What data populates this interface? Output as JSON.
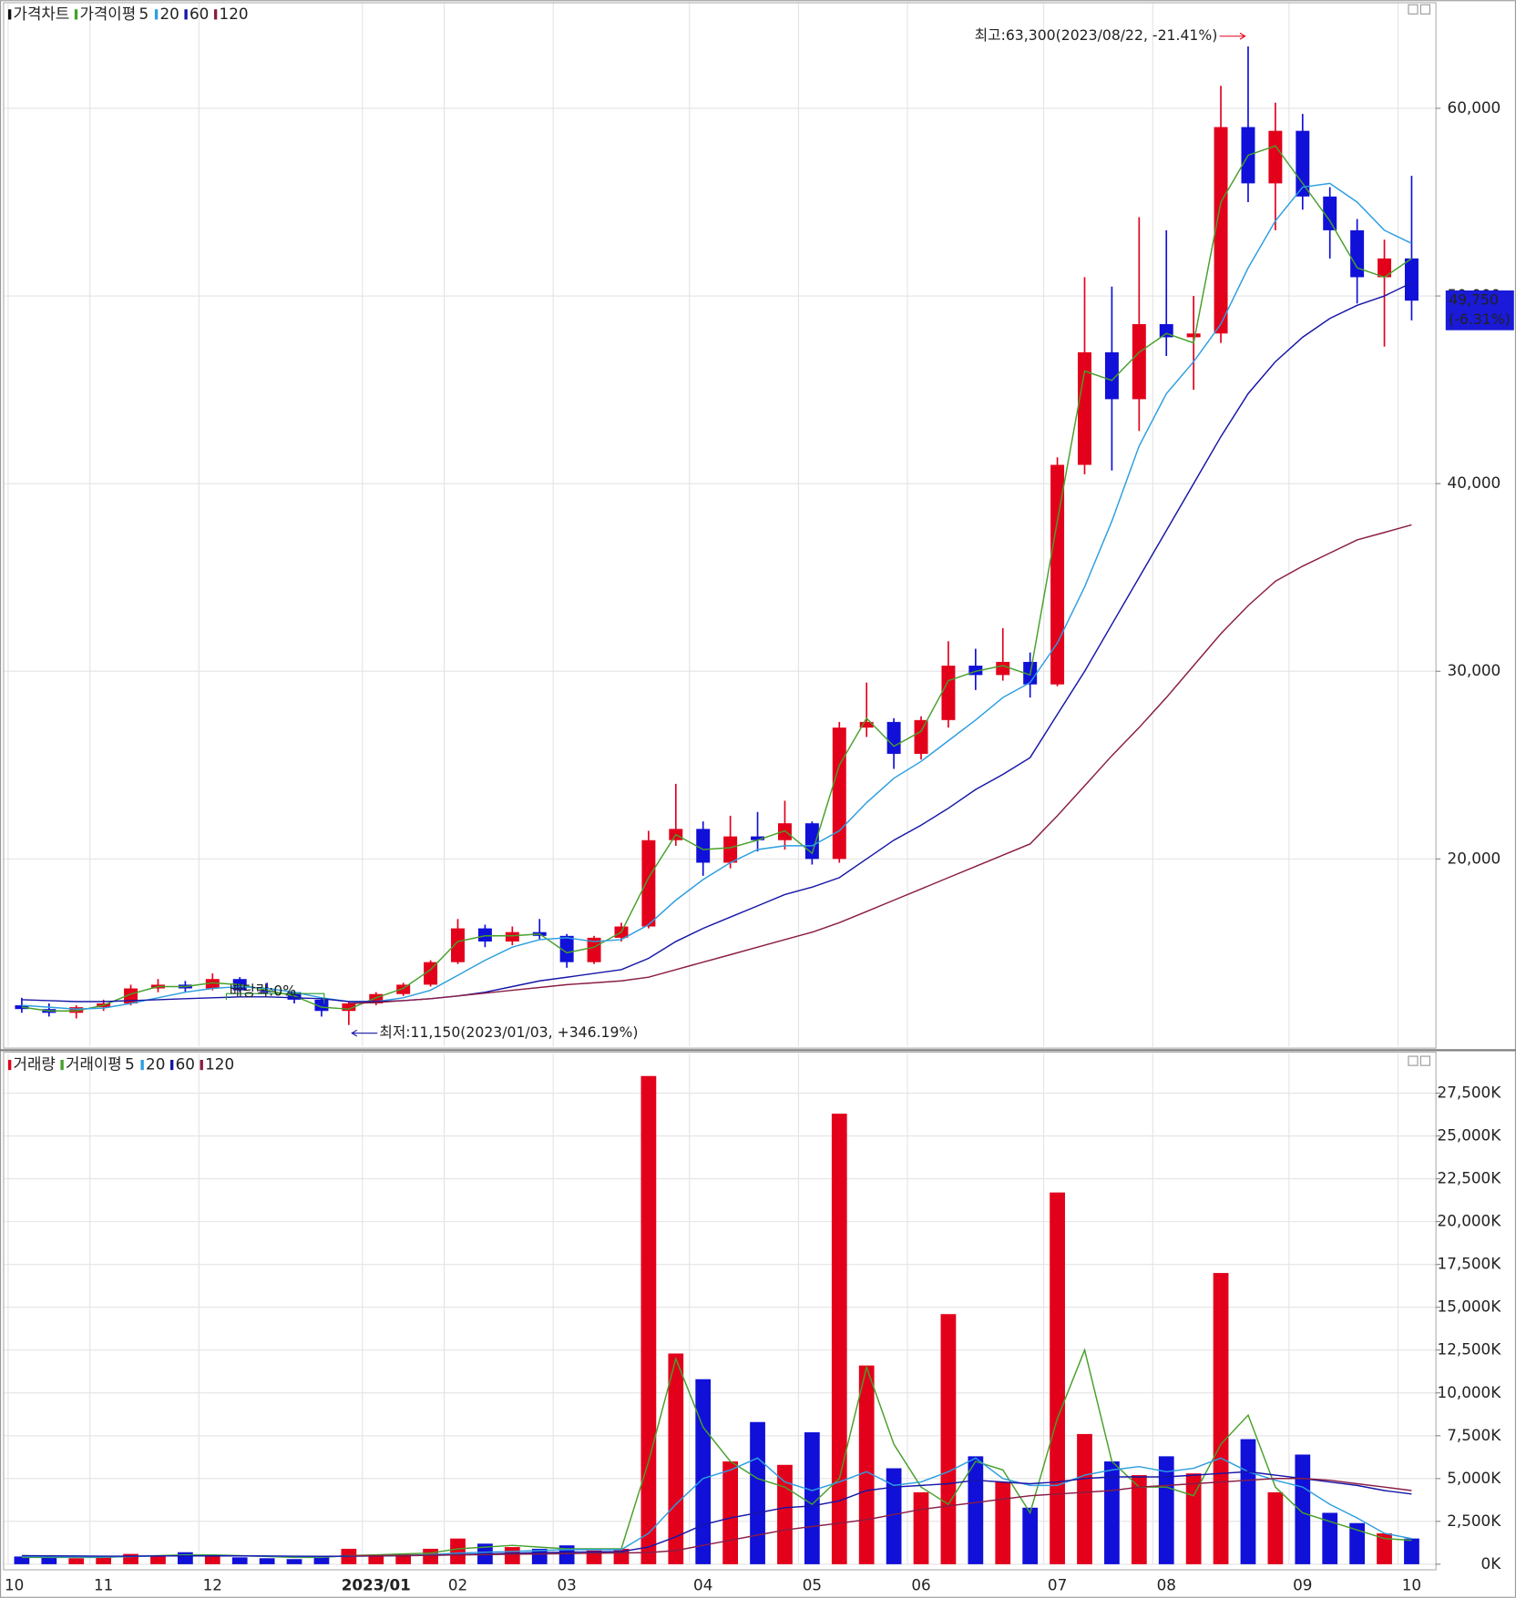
{
  "chart_data": [
    {
      "type": "candlestick",
      "legend_title": "가격차트",
      "ma_title": "가격이평",
      "up_color": "#e3001b",
      "down_color": "#1010d8",
      "open": [
        12200,
        12000,
        11800,
        12100,
        12300,
        13100,
        13300,
        13100,
        13600,
        13000,
        12900,
        12500,
        11900,
        12300,
        12800,
        13300,
        14500,
        16300,
        15600,
        16100,
        15900,
        14500,
        15800,
        16400,
        21000,
        21600,
        19800,
        21200,
        21000,
        21900,
        20000,
        27000,
        27300,
        25600,
        27400,
        30300,
        29800,
        30500,
        29300,
        41000,
        47000,
        44500,
        48500,
        47800,
        48000,
        59000,
        56000,
        58800,
        55300,
        53500,
        51000,
        52000
      ],
      "high": [
        12600,
        12300,
        12200,
        12500,
        13300,
        13600,
        13500,
        13900,
        13700,
        13400,
        13000,
        12600,
        12400,
        12900,
        13400,
        14600,
        16800,
        16500,
        16400,
        16800,
        16000,
        15900,
        16600,
        21500,
        24000,
        22000,
        22300,
        22500,
        23100,
        22000,
        27300,
        29400,
        27500,
        27600,
        31600,
        31200,
        32300,
        31000,
        41400,
        51000,
        50500,
        54200,
        53500,
        50000,
        61200,
        63300,
        60300,
        59700,
        55800,
        54100,
        53000,
        56400
      ],
      "low": [
        11800,
        11600,
        11500,
        11900,
        12200,
        12900,
        12900,
        13000,
        12900,
        12800,
        12300,
        11600,
        11150,
        12200,
        12700,
        13200,
        14400,
        15300,
        15400,
        15700,
        14200,
        14400,
        15600,
        16300,
        20700,
        19100,
        19500,
        20400,
        20500,
        19700,
        19800,
        26500,
        24800,
        25300,
        27000,
        29000,
        29500,
        28600,
        29200,
        40500,
        40700,
        42800,
        46800,
        45000,
        47500,
        55000,
        53500,
        54600,
        52000,
        49600,
        47300,
        48700
      ],
      "close": [
        12000,
        11800,
        12100,
        12300,
        13100,
        13300,
        13100,
        13600,
        13000,
        12900,
        12500,
        11900,
        12300,
        12800,
        13300,
        14500,
        16300,
        15600,
        16100,
        15900,
        14500,
        15800,
        16400,
        21000,
        21600,
        19800,
        21200,
        21000,
        21900,
        20000,
        27000,
        27300,
        25600,
        27400,
        30300,
        29800,
        30500,
        29300,
        41000,
        47000,
        44500,
        48500,
        47800,
        48000,
        59000,
        56000,
        58800,
        55300,
        53500,
        51000,
        52000,
        49750
      ],
      "series": [
        {
          "name": "5",
          "color": "#47a02a",
          "values": [
            12100,
            11900,
            11900,
            12200,
            12800,
            13200,
            13200,
            13400,
            13300,
            13000,
            12700,
            12100,
            12000,
            12600,
            13100,
            14100,
            15600,
            15900,
            15900,
            16000,
            15000,
            15300,
            16100,
            19000,
            21300,
            20500,
            20600,
            21000,
            21500,
            20300,
            25000,
            27500,
            26000,
            26800,
            29500,
            30000,
            30300,
            29800,
            38000,
            46000,
            45500,
            47000,
            48000,
            47500,
            55000,
            57500,
            58000,
            56000,
            54000,
            51500,
            51000,
            52000
          ]
        },
        {
          "name": "20",
          "color": "#2c9ee0",
          "values": [
            12200,
            12100,
            12000,
            12050,
            12300,
            12600,
            12900,
            13100,
            13200,
            13100,
            12900,
            12600,
            12400,
            12400,
            12600,
            13000,
            13800,
            14600,
            15300,
            15700,
            15800,
            15600,
            15700,
            16500,
            17800,
            18900,
            19800,
            20500,
            20700,
            20700,
            21500,
            23000,
            24300,
            25200,
            26300,
            27400,
            28600,
            29400,
            31500,
            34500,
            38000,
            42000,
            44800,
            46500,
            48500,
            51500,
            54000,
            55800,
            56000,
            55000,
            53500,
            52800
          ]
        },
        {
          "name": "60",
          "color": "#1616a8",
          "values": [
            12500,
            12450,
            12400,
            12400,
            12450,
            12500,
            12550,
            12600,
            12650,
            12650,
            12600,
            12550,
            12400,
            12400,
            12450,
            12550,
            12700,
            12900,
            13200,
            13500,
            13700,
            13900,
            14100,
            14700,
            15600,
            16300,
            16900,
            17500,
            18100,
            18500,
            19000,
            20000,
            21000,
            21800,
            22700,
            23700,
            24500,
            25400,
            27700,
            30000,
            32500,
            35000,
            37500,
            40000,
            42500,
            44800,
            46500,
            47800,
            48800,
            49500,
            50000,
            50700
          ]
        },
        {
          "name": "120",
          "color": "#8a1c46",
          "values": [
            null,
            null,
            null,
            null,
            null,
            null,
            null,
            null,
            null,
            null,
            null,
            null,
            12300,
            12350,
            12450,
            12550,
            12700,
            12850,
            13000,
            13150,
            13300,
            13400,
            13500,
            13700,
            14100,
            14500,
            14900,
            15300,
            15700,
            16100,
            16600,
            17200,
            17800,
            18400,
            19000,
            19600,
            20200,
            20800,
            22300,
            23900,
            25500,
            27000,
            28600,
            30300,
            32000,
            33500,
            34800,
            35600,
            36300,
            37000,
            37400,
            37800
          ]
        }
      ],
      "ylim": [
        10000,
        65600
      ],
      "yticks": [
        {
          "value": 20000,
          "label": "20,000"
        },
        {
          "value": 30000,
          "label": "30,000"
        },
        {
          "value": 40000,
          "label": "40,000"
        },
        {
          "value": 50000,
          "label": "50,000"
        },
        {
          "value": 60000,
          "label": "60,000"
        }
      ],
      "grid": true,
      "annotations": [
        "최고:63,300(2023/08/22, -21.41%)",
        "최저:11,150(2023/01/03, +346.19%)",
        "배당락:0%"
      ],
      "last_price": {
        "value": 49750,
        "label": "49,750",
        "change": "(-6.31%)"
      }
    },
    {
      "type": "bar",
      "legend_title": "거래량",
      "ma_title": "거래이평",
      "color": "#e3001b",
      "categories": [
        "10",
        null,
        null,
        "11",
        null,
        null,
        null,
        "12",
        null,
        null,
        null,
        null,
        null,
        "2023/01",
        null,
        null,
        "02",
        null,
        null,
        null,
        "03",
        null,
        null,
        null,
        null,
        "04",
        null,
        null,
        null,
        "05",
        null,
        null,
        null,
        "06",
        null,
        null,
        null,
        null,
        "07",
        null,
        null,
        null,
        "08",
        null,
        null,
        null,
        null,
        "09",
        null,
        null,
        null,
        "10"
      ],
      "values": [
        450,
        400,
        350,
        400,
        600,
        500,
        700,
        500,
        400,
        350,
        300,
        450,
        900,
        500,
        600,
        900,
        1500,
        1200,
        1000,
        900,
        1100,
        800,
        900,
        28500,
        12300,
        10800,
        6000,
        8300,
        5800,
        7700,
        26300,
        11600,
        5600,
        4200,
        14600,
        6300,
        4800,
        3300,
        21700,
        7600,
        6000,
        5200,
        6300,
        5300,
        17000,
        7300,
        4200,
        6400,
        3000,
        2400,
        1800,
        1500
      ],
      "series": [
        {
          "name": "5",
          "color": "#47a02a",
          "values": [
            400,
            400,
            400,
            400,
            450,
            500,
            550,
            550,
            500,
            450,
            400,
            400,
            500,
            550,
            600,
            650,
            900,
            1000,
            1100,
            1000,
            900,
            900,
            900,
            6000,
            12000,
            8000,
            6000,
            5000,
            4500,
            3500,
            5000,
            11500,
            7000,
            4500,
            3500,
            6000,
            5500,
            3000,
            8500,
            12500,
            6000,
            4500,
            4500,
            4000,
            7000,
            8700,
            4500,
            3000,
            2500,
            2000,
            1500,
            1400
          ]
        },
        {
          "name": "20",
          "color": "#2c9ee0",
          "values": [
            450,
            440,
            430,
            420,
            450,
            480,
            500,
            500,
            490,
            470,
            450,
            440,
            470,
            490,
            520,
            560,
            650,
            700,
            750,
            800,
            850,
            850,
            850,
            1800,
            3500,
            5000,
            5500,
            6200,
            4800,
            4300,
            4800,
            5400,
            4600,
            4800,
            5400,
            6200,
            5000,
            4600,
            4600,
            5200,
            5500,
            5700,
            5400,
            5600,
            6200,
            5400,
            4900,
            4500,
            3500,
            2700,
            1800,
            1500
          ]
        },
        {
          "name": "60",
          "color": "#1616a8",
          "values": [
            500,
            490,
            480,
            470,
            470,
            480,
            490,
            490,
            490,
            480,
            470,
            460,
            470,
            480,
            500,
            520,
            560,
            600,
            640,
            680,
            700,
            720,
            740,
            1000,
            1600,
            2300,
            2700,
            3000,
            3300,
            3400,
            3700,
            4300,
            4500,
            4600,
            4700,
            4900,
            4800,
            4700,
            4800,
            5000,
            5100,
            5100,
            5100,
            5200,
            5300,
            5400,
            5200,
            5000,
            4800,
            4600,
            4300,
            4100
          ]
        },
        {
          "name": "120",
          "color": "#8a1c46",
          "values": [
            null,
            null,
            null,
            null,
            null,
            null,
            null,
            null,
            null,
            null,
            null,
            null,
            500,
            500,
            510,
            520,
            540,
            560,
            580,
            600,
            620,
            640,
            660,
            680,
            800,
            1100,
            1400,
            1700,
            2000,
            2200,
            2400,
            2600,
            2900,
            3200,
            3400,
            3600,
            3800,
            4000,
            4100,
            4200,
            4300,
            4500,
            4600,
            4700,
            4800,
            4900,
            5000,
            5000,
            4900,
            4700,
            4500,
            4300
          ]
        }
      ],
      "ylim": [
        0,
        29800
      ],
      "yticks": [
        {
          "value": 0,
          "label": "0K"
        },
        {
          "value": 2500,
          "label": "2,500K"
        },
        {
          "value": 5000,
          "label": "5,000K"
        },
        {
          "value": 7500,
          "label": "7,500K"
        },
        {
          "value": 10000,
          "label": "10,000K"
        },
        {
          "value": 12500,
          "label": "12,500K"
        },
        {
          "value": 15000,
          "label": "15,000K"
        },
        {
          "value": 17500,
          "label": "17,500K"
        },
        {
          "value": 20000,
          "label": "20,000K"
        },
        {
          "value": 22500,
          "label": "22,500K"
        },
        {
          "value": 25000,
          "label": "25,000K"
        },
        {
          "value": 27500,
          "label": "27,500K"
        }
      ],
      "grid": true
    }
  ]
}
